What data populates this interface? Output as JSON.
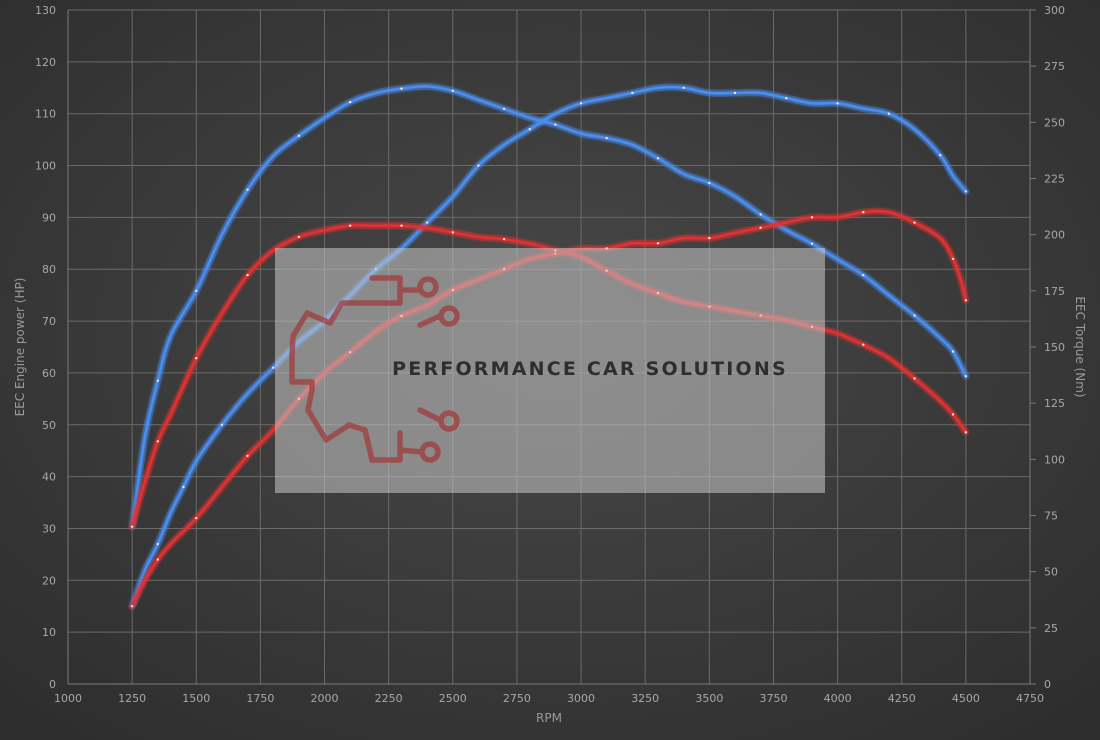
{
  "chart_data": {
    "type": "line",
    "xlabel": "RPM",
    "ylabel_left": "EEC Engine power (HP)",
    "ylabel_right": "EEC Torque (Nm)",
    "xlim": [
      1000,
      4750
    ],
    "ylim_left": [
      0,
      130
    ],
    "ylim_right": [
      0,
      300
    ],
    "x_ticks": [
      "1000",
      "1250",
      "1500",
      "1750",
      "2000",
      "2250",
      "2500",
      "2750",
      "3000",
      "3250",
      "3500",
      "3750",
      "4000",
      "4250",
      "4500",
      "4750"
    ],
    "y_left_ticks": [
      "0",
      "10",
      "20",
      "30",
      "40",
      "50",
      "60",
      "70",
      "80",
      "90",
      "100",
      "110",
      "120",
      "130"
    ],
    "y_right_ticks": [
      "0",
      "25",
      "50",
      "75",
      "100",
      "125",
      "150",
      "175",
      "200",
      "225",
      "250",
      "275",
      "300"
    ],
    "grid": true,
    "legend": "none",
    "series": [
      {
        "color": "#4a8ef0",
        "axis": "left",
        "points": [
          [
            1250,
            15
          ],
          [
            1300,
            22
          ],
          [
            1350,
            27
          ],
          [
            1400,
            33
          ],
          [
            1450,
            38
          ],
          [
            1500,
            43
          ],
          [
            1600,
            50
          ],
          [
            1700,
            56
          ],
          [
            1800,
            61
          ],
          [
            1900,
            66
          ],
          [
            2000,
            70
          ],
          [
            2100,
            75
          ],
          [
            2200,
            80
          ],
          [
            2300,
            84
          ],
          [
            2400,
            89
          ],
          [
            2500,
            94
          ],
          [
            2600,
            100
          ],
          [
            2700,
            104
          ],
          [
            2800,
            107
          ],
          [
            2900,
            110
          ],
          [
            3000,
            112
          ],
          [
            3100,
            113
          ],
          [
            3200,
            114
          ],
          [
            3300,
            115
          ],
          [
            3400,
            115
          ],
          [
            3500,
            114
          ],
          [
            3600,
            114
          ],
          [
            3700,
            114
          ],
          [
            3800,
            113
          ],
          [
            3900,
            112
          ],
          [
            4000,
            112
          ],
          [
            4100,
            111
          ],
          [
            4200,
            110
          ],
          [
            4300,
            107
          ],
          [
            4400,
            102
          ],
          [
            4450,
            98
          ],
          [
            4500,
            95
          ]
        ]
      },
      {
        "color": "#4a8ef0",
        "axis": "right",
        "points": [
          [
            1250,
            70
          ],
          [
            1300,
            110
          ],
          [
            1350,
            135
          ],
          [
            1400,
            155
          ],
          [
            1500,
            175
          ],
          [
            1600,
            200
          ],
          [
            1700,
            220
          ],
          [
            1800,
            235
          ],
          [
            1900,
            244
          ],
          [
            2000,
            252
          ],
          [
            2100,
            259
          ],
          [
            2200,
            263
          ],
          [
            2300,
            265
          ],
          [
            2400,
            266
          ],
          [
            2500,
            264
          ],
          [
            2600,
            260
          ],
          [
            2700,
            256
          ],
          [
            2800,
            252
          ],
          [
            2900,
            249
          ],
          [
            3000,
            245
          ],
          [
            3100,
            243
          ],
          [
            3200,
            240
          ],
          [
            3300,
            234
          ],
          [
            3400,
            227
          ],
          [
            3500,
            223
          ],
          [
            3600,
            217
          ],
          [
            3700,
            209
          ],
          [
            3800,
            202
          ],
          [
            3900,
            196
          ],
          [
            4000,
            189
          ],
          [
            4100,
            182
          ],
          [
            4200,
            173
          ],
          [
            4300,
            164
          ],
          [
            4400,
            154
          ],
          [
            4450,
            148
          ],
          [
            4500,
            137
          ]
        ]
      },
      {
        "color": "#e03030",
        "axis": "left",
        "points": [
          [
            1250,
            15
          ],
          [
            1300,
            20
          ],
          [
            1350,
            24
          ],
          [
            1400,
            27
          ],
          [
            1500,
            32
          ],
          [
            1600,
            38
          ],
          [
            1700,
            44
          ],
          [
            1800,
            49
          ],
          [
            1900,
            55
          ],
          [
            2000,
            60
          ],
          [
            2100,
            64
          ],
          [
            2200,
            68
          ],
          [
            2300,
            71
          ],
          [
            2400,
            73
          ],
          [
            2500,
            76
          ],
          [
            2600,
            78
          ],
          [
            2700,
            80
          ],
          [
            2800,
            82
          ],
          [
            2900,
            83
          ],
          [
            3000,
            84
          ],
          [
            3100,
            84
          ],
          [
            3200,
            85
          ],
          [
            3300,
            85
          ],
          [
            3400,
            86
          ],
          [
            3500,
            86
          ],
          [
            3600,
            87
          ],
          [
            3700,
            88
          ],
          [
            3800,
            89
          ],
          [
            3900,
            90
          ],
          [
            4000,
            90
          ],
          [
            4100,
            91
          ],
          [
            4200,
            91
          ],
          [
            4300,
            89
          ],
          [
            4400,
            86
          ],
          [
            4450,
            82
          ],
          [
            4480,
            78
          ],
          [
            4500,
            74
          ]
        ]
      },
      {
        "color": "#e03030",
        "axis": "right",
        "points": [
          [
            1250,
            70
          ],
          [
            1300,
            90
          ],
          [
            1350,
            108
          ],
          [
            1400,
            120
          ],
          [
            1500,
            145
          ],
          [
            1600,
            165
          ],
          [
            1700,
            182
          ],
          [
            1800,
            193
          ],
          [
            1900,
            199
          ],
          [
            2000,
            202
          ],
          [
            2100,
            204
          ],
          [
            2200,
            204
          ],
          [
            2300,
            204
          ],
          [
            2400,
            203
          ],
          [
            2500,
            201
          ],
          [
            2600,
            199
          ],
          [
            2700,
            198
          ],
          [
            2800,
            196
          ],
          [
            2900,
            193
          ],
          [
            3000,
            190
          ],
          [
            3100,
            184
          ],
          [
            3200,
            178
          ],
          [
            3300,
            174
          ],
          [
            3400,
            170
          ],
          [
            3500,
            168
          ],
          [
            3600,
            166
          ],
          [
            3700,
            164
          ],
          [
            3800,
            162
          ],
          [
            3900,
            159
          ],
          [
            4000,
            156
          ],
          [
            4100,
            151
          ],
          [
            4200,
            145
          ],
          [
            4300,
            136
          ],
          [
            4400,
            126
          ],
          [
            4450,
            120
          ],
          [
            4500,
            112
          ]
        ]
      }
    ]
  },
  "watermark": {
    "text": "PERFORMANCE CAR SOLUTIONS",
    "logo_color": "#a03c3c",
    "text_color": "#2e2e2e"
  }
}
